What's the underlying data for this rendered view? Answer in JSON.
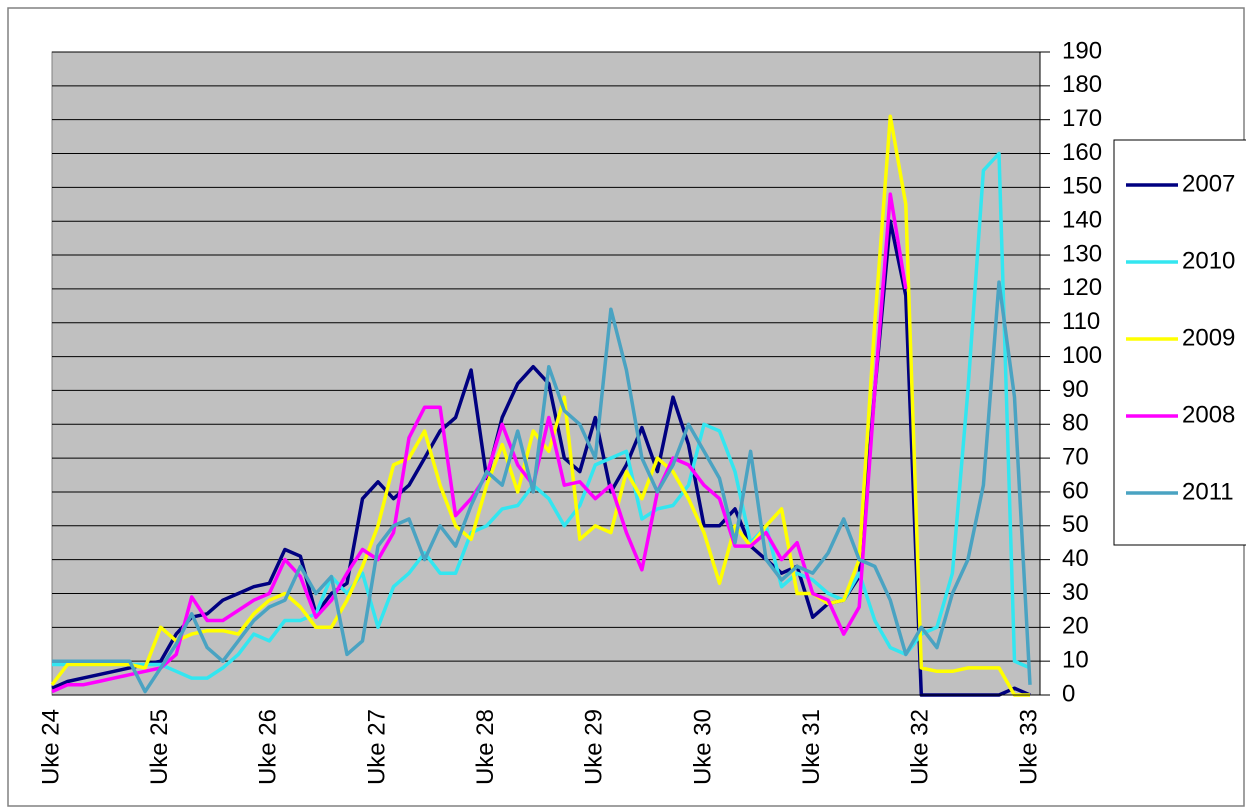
{
  "chart_data": {
    "type": "line",
    "categories": [
      "Uke 24",
      null,
      null,
      null,
      null,
      null,
      null,
      "Uke 25",
      null,
      null,
      null,
      null,
      null,
      null,
      "Uke 26",
      null,
      null,
      null,
      null,
      null,
      null,
      "Uke 27",
      null,
      null,
      null,
      null,
      null,
      null,
      "Uke 28",
      null,
      null,
      null,
      null,
      null,
      null,
      "Uke 29",
      null,
      null,
      null,
      null,
      null,
      null,
      "Uke 30",
      null,
      null,
      null,
      null,
      null,
      null,
      "Uke 31",
      null,
      null,
      null,
      null,
      null,
      null,
      "Uke 32",
      null,
      null,
      null,
      null,
      null,
      null,
      "Uke 33"
    ],
    "ylim": [
      0,
      190
    ],
    "yticks": [
      0,
      10,
      20,
      30,
      40,
      50,
      60,
      70,
      80,
      90,
      100,
      110,
      120,
      130,
      140,
      150,
      160,
      170,
      180,
      190
    ],
    "grid": true,
    "legend": "right",
    "series": [
      {
        "name": "2007",
        "color": "#000080",
        "values": [
          2,
          4,
          5,
          6,
          7,
          8,
          9,
          10,
          18,
          23,
          24,
          28,
          30,
          32,
          33,
          43,
          41,
          24,
          30,
          33,
          58,
          63,
          58,
          62,
          70,
          78,
          82,
          96,
          64,
          82,
          92,
          97,
          92,
          70,
          66,
          82,
          60,
          68,
          79,
          66,
          88,
          74,
          50,
          50,
          55,
          44,
          40,
          36,
          38,
          23,
          27,
          28,
          35,
          90,
          140,
          118,
          0,
          0,
          0,
          0,
          0,
          0,
          2,
          0
        ]
      },
      {
        "name": "2010",
        "color": "#33e6f0",
        "values": [
          9,
          9,
          9,
          9,
          9,
          9,
          9,
          9,
          7,
          5,
          5,
          8,
          12,
          18,
          16,
          22,
          22,
          24,
          35,
          30,
          36,
          20,
          32,
          36,
          42,
          36,
          36,
          48,
          50,
          55,
          56,
          62,
          58,
          50,
          56,
          68,
          70,
          72,
          52,
          55,
          56,
          62,
          80,
          78,
          66,
          45,
          50,
          32,
          36,
          34,
          30,
          28,
          36,
          22,
          14,
          12,
          18,
          20,
          36,
          90,
          155,
          160,
          10,
          8
        ]
      },
      {
        "name": "2009",
        "color": "#ffff00",
        "values": [
          3,
          9,
          9,
          9,
          9,
          9,
          8,
          20,
          16,
          18,
          19,
          19,
          18,
          24,
          28,
          30,
          26,
          20,
          20,
          28,
          38,
          50,
          68,
          70,
          78,
          62,
          50,
          46,
          62,
          74,
          60,
          78,
          72,
          88,
          46,
          50,
          48,
          66,
          58,
          70,
          66,
          58,
          48,
          33,
          50,
          44,
          50,
          55,
          30,
          30,
          27,
          28,
          40,
          110,
          171,
          145,
          8,
          7,
          7,
          8,
          8,
          8,
          0,
          0
        ]
      },
      {
        "name": "2008",
        "color": "#ff00ff",
        "values": [
          1,
          3,
          3,
          4,
          5,
          6,
          7,
          8,
          12,
          29,
          22,
          22,
          25,
          28,
          30,
          40,
          35,
          23,
          28,
          36,
          43,
          40,
          48,
          76,
          85,
          85,
          53,
          58,
          65,
          80,
          68,
          62,
          82,
          62,
          63,
          58,
          62,
          48,
          37,
          60,
          70,
          68,
          62,
          58,
          44,
          44,
          48,
          40,
          45,
          30,
          28,
          18,
          26,
          90,
          148,
          120,
          null,
          null,
          null,
          null,
          null,
          null,
          null,
          null
        ]
      },
      {
        "name": "2011",
        "color": "#4aa3c2",
        "values": [
          10,
          10,
          10,
          10,
          10,
          10,
          1,
          8,
          15,
          24,
          14,
          10,
          16,
          22,
          26,
          28,
          38,
          30,
          35,
          12,
          16,
          44,
          50,
          52,
          40,
          50,
          44,
          56,
          66,
          62,
          78,
          60,
          97,
          84,
          80,
          70,
          114,
          96,
          70,
          60,
          68,
          80,
          72,
          64,
          45,
          72,
          40,
          34,
          38,
          36,
          42,
          52,
          40,
          38,
          28,
          12,
          20,
          14,
          30,
          40,
          62,
          122,
          88,
          3
        ]
      }
    ]
  }
}
